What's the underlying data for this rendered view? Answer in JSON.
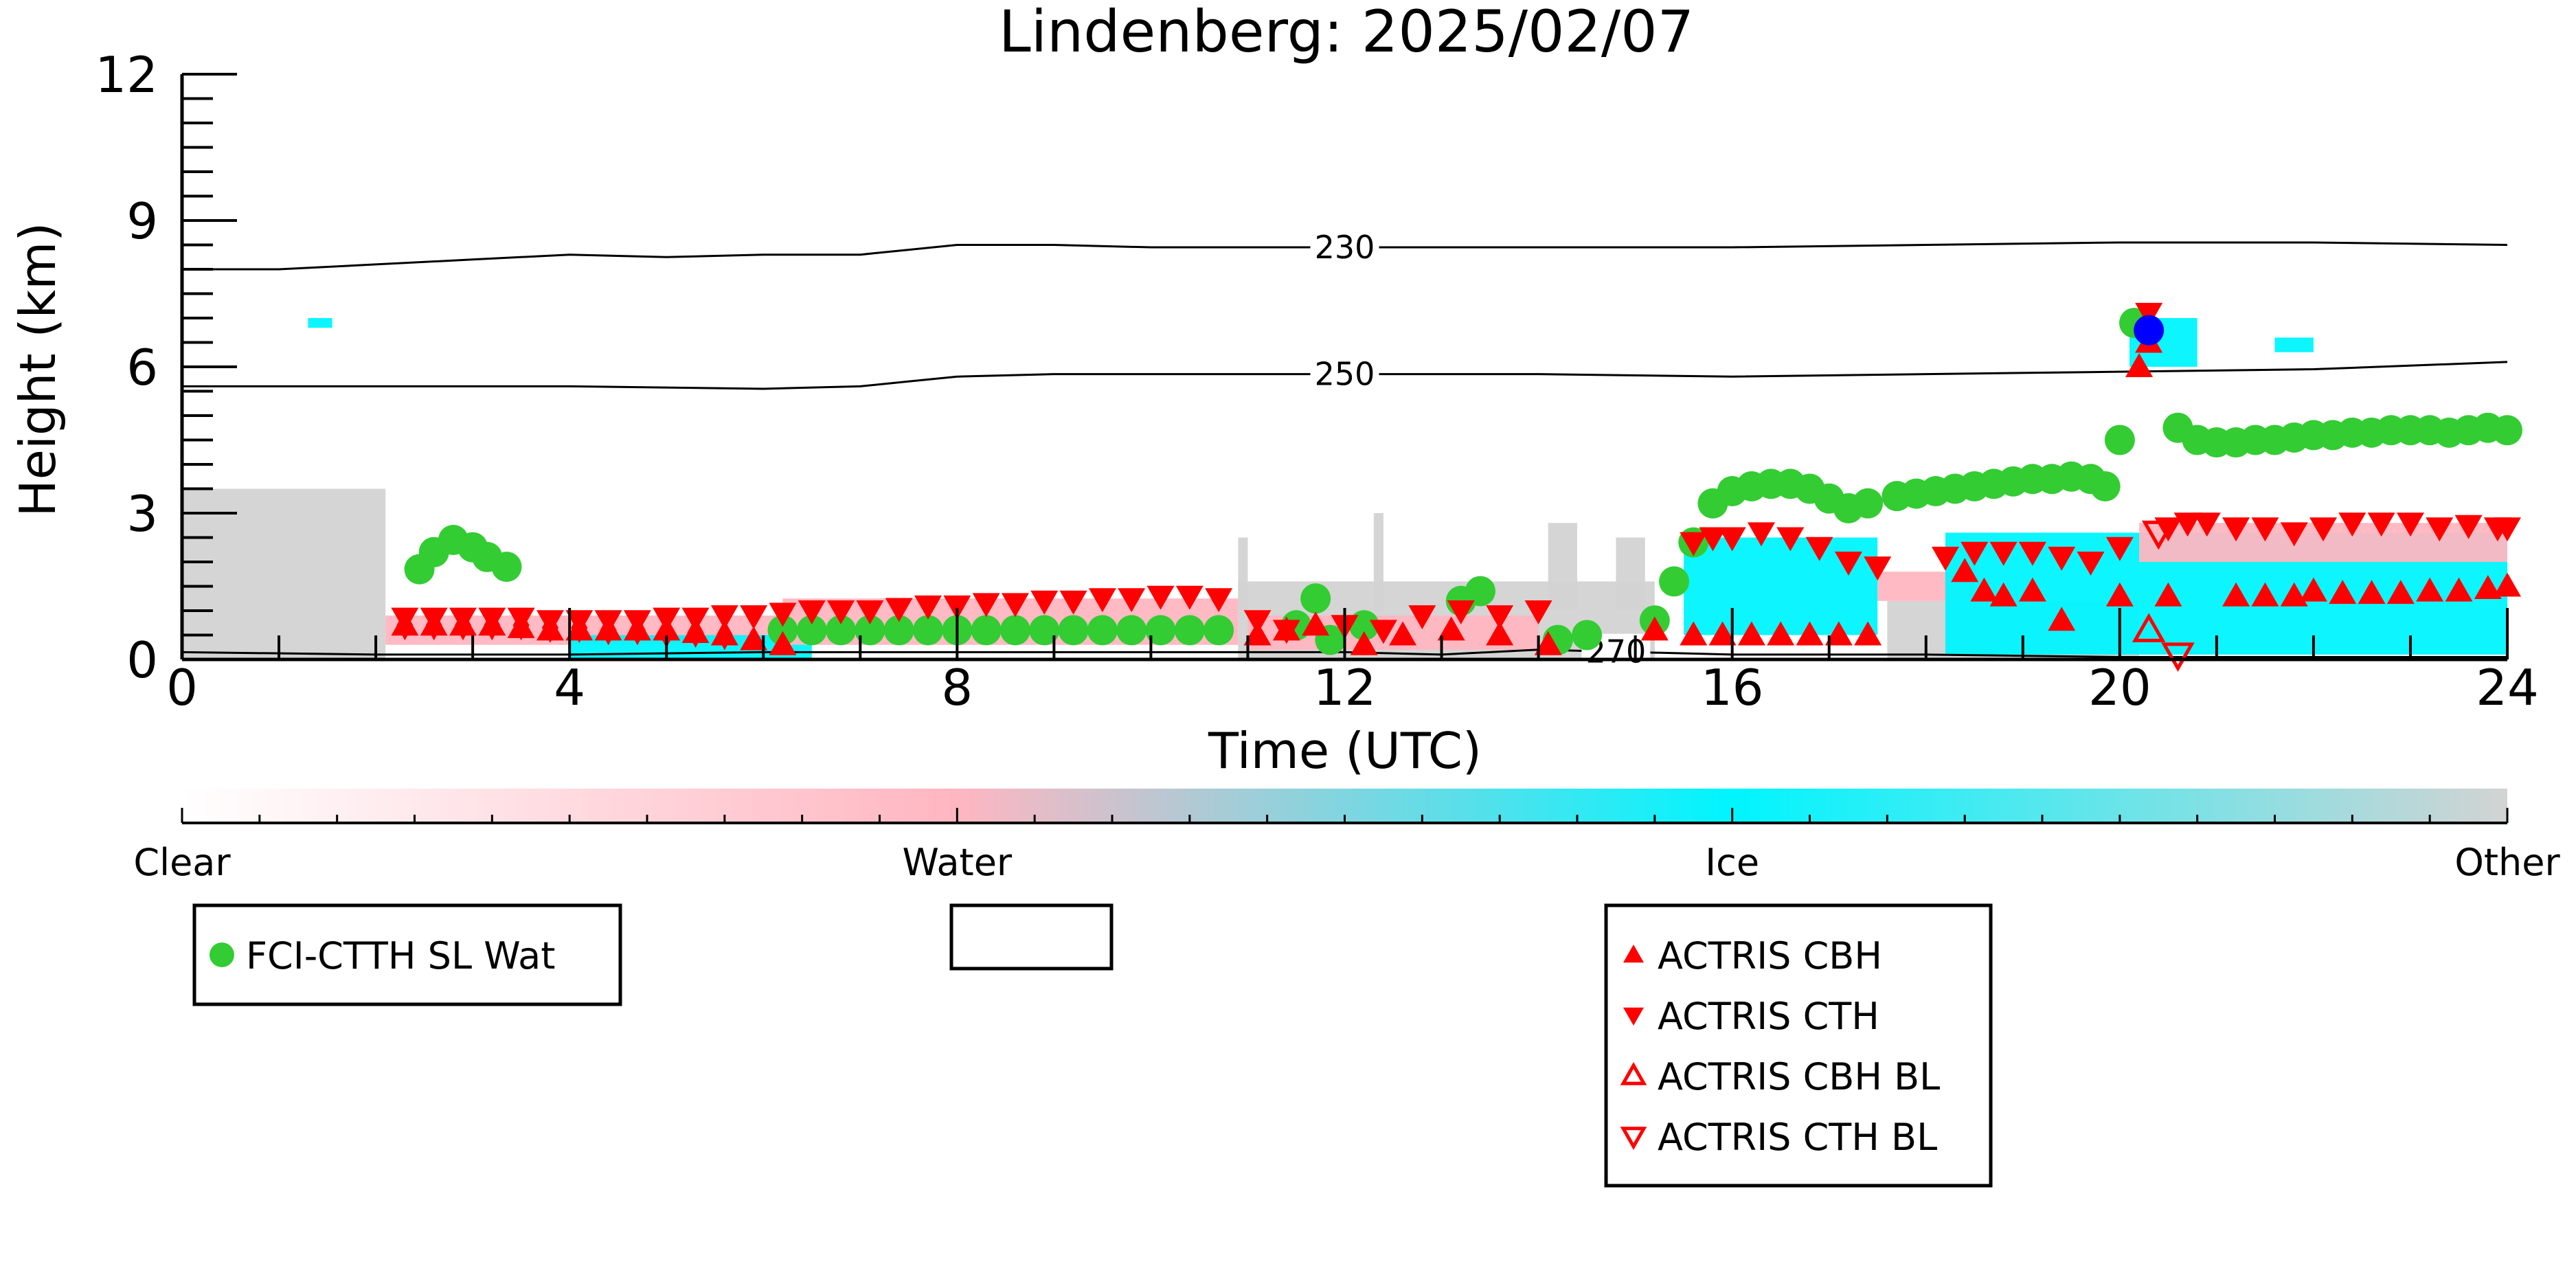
{
  "chart_data": {
    "type": "scatter",
    "title": "Lindenberg: 2025/02/07",
    "xlabel": "Time (UTC)",
    "ylabel": "Height (km)",
    "xlim": [
      0,
      24
    ],
    "ylim": [
      0,
      12
    ],
    "x_ticks": [
      0,
      4,
      8,
      12,
      16,
      20,
      24
    ],
    "x_tick_labels": [
      "0",
      "4",
      "8",
      "12",
      "16",
      "20",
      "24"
    ],
    "y_ticks": [
      0,
      3,
      6,
      9,
      12
    ],
    "y_tick_labels": [
      "0",
      "3",
      "6",
      "9",
      "12"
    ],
    "grid": false,
    "colors": {
      "clear": "#ffffff",
      "water": "#ffb6c1",
      "ice": "#00f5ff",
      "other": "#d3d3d3",
      "fci": "#33cc33",
      "actris": "#ff0000",
      "blue_marker": "#0000ff"
    },
    "contours": [
      {
        "label": "230",
        "label_x": 12.0,
        "x": [
          0,
          1,
          2,
          3,
          4,
          5,
          6,
          7,
          7.5,
          8,
          9,
          10,
          12,
          14,
          16,
          18,
          20,
          22,
          24
        ],
        "y": [
          8.0,
          8.0,
          8.1,
          8.2,
          8.3,
          8.25,
          8.3,
          8.3,
          8.4,
          8.5,
          8.5,
          8.45,
          8.45,
          8.45,
          8.45,
          8.5,
          8.55,
          8.55,
          8.5
        ]
      },
      {
        "label": "250",
        "label_x": 12.0,
        "x": [
          0,
          2,
          4,
          6,
          7,
          7.5,
          8,
          9,
          10,
          12,
          14,
          16,
          18,
          20,
          22,
          24
        ],
        "y": [
          5.6,
          5.6,
          5.6,
          5.55,
          5.6,
          5.7,
          5.8,
          5.85,
          5.85,
          5.85,
          5.85,
          5.8,
          5.85,
          5.9,
          5.95,
          6.1
        ]
      },
      {
        "label": "270",
        "label_x": 14.8,
        "x": [
          0,
          2,
          4,
          6,
          8,
          10,
          12,
          13,
          14,
          15,
          16,
          18,
          20,
          22,
          24
        ],
        "y": [
          0.15,
          0.1,
          0.1,
          0.15,
          0.15,
          0.15,
          0.15,
          0.1,
          0.2,
          0.15,
          0.1,
          0.1,
          0.05,
          0.05,
          0.05
        ]
      }
    ],
    "series": [
      {
        "name": "FCI-CTTH SL Wat",
        "marker": "circle",
        "color": "#33cc33",
        "x": [
          2.45,
          2.6,
          2.8,
          3.0,
          3.15,
          3.35,
          6.2,
          6.5,
          6.8,
          7.1,
          7.4,
          7.7,
          8.0,
          8.3,
          8.6,
          8.9,
          9.2,
          9.5,
          9.8,
          10.1,
          10.4,
          10.7,
          11.5,
          11.7,
          11.85,
          12.2,
          13.2,
          13.4,
          14.2,
          14.5,
          15.2,
          15.4,
          15.6,
          15.8,
          16.0,
          16.2,
          16.4,
          16.6,
          16.8,
          17.0,
          17.2,
          17.4,
          17.7,
          17.9,
          18.1,
          18.3,
          18.5,
          18.7,
          18.9,
          19.1,
          19.3,
          19.5,
          19.7,
          19.85,
          20.0,
          20.15,
          20.6,
          20.8,
          21.0,
          21.2,
          21.4,
          21.6,
          21.8,
          22.0,
          22.2,
          22.4,
          22.6,
          22.8,
          23.0,
          23.2,
          23.4,
          23.6,
          23.8,
          24.0
        ],
        "y": [
          1.85,
          2.2,
          2.45,
          2.3,
          2.1,
          1.9,
          0.6,
          0.6,
          0.6,
          0.6,
          0.6,
          0.6,
          0.6,
          0.6,
          0.6,
          0.6,
          0.6,
          0.6,
          0.6,
          0.6,
          0.6,
          0.6,
          0.7,
          1.25,
          0.4,
          0.7,
          1.2,
          1.4,
          0.4,
          0.5,
          0.8,
          1.6,
          2.4,
          3.2,
          3.45,
          3.55,
          3.6,
          3.6,
          3.5,
          3.3,
          3.1,
          3.2,
          3.35,
          3.4,
          3.45,
          3.5,
          3.55,
          3.6,
          3.65,
          3.7,
          3.7,
          3.75,
          3.7,
          3.55,
          4.5,
          6.9,
          4.75,
          4.5,
          4.45,
          4.45,
          4.5,
          4.5,
          4.55,
          4.6,
          4.6,
          4.65,
          4.65,
          4.7,
          4.7,
          4.7,
          4.65,
          4.7,
          4.75,
          4.7
        ]
      },
      {
        "name": "ACTRIS CBH",
        "marker": "triangle-up",
        "color": "#ff0000",
        "x": [
          2.3,
          2.6,
          2.9,
          3.2,
          3.5,
          3.8,
          4.1,
          4.4,
          4.7,
          5.0,
          5.3,
          5.6,
          5.9,
          6.2,
          11.1,
          11.4,
          11.7,
          12.2,
          12.6,
          13.1,
          13.6,
          14.1,
          15.2,
          15.6,
          15.9,
          16.2,
          16.5,
          16.8,
          17.1,
          17.4,
          18.4,
          18.6,
          18.8,
          19.1,
          19.4,
          20.0,
          20.2,
          20.3,
          20.5,
          21.2,
          21.5,
          21.8,
          22.0,
          22.3,
          22.6,
          22.9,
          23.2,
          23.5,
          23.8,
          24.0
        ],
        "y": [
          0.7,
          0.7,
          0.7,
          0.7,
          0.65,
          0.6,
          0.6,
          0.6,
          0.6,
          0.6,
          0.55,
          0.5,
          0.4,
          0.3,
          0.5,
          0.6,
          0.7,
          0.3,
          0.5,
          0.6,
          0.5,
          0.3,
          0.6,
          0.5,
          0.5,
          0.5,
          0.5,
          0.5,
          0.5,
          0.5,
          1.8,
          1.4,
          1.3,
          1.4,
          0.8,
          1.3,
          6.0,
          6.5,
          1.3,
          1.3,
          1.3,
          1.3,
          1.4,
          1.35,
          1.35,
          1.35,
          1.4,
          1.4,
          1.45,
          1.5
        ]
      },
      {
        "name": "ACTRIS CTH",
        "marker": "triangle-down",
        "color": "#ff0000",
        "x": [
          2.3,
          2.6,
          2.9,
          3.2,
          3.5,
          3.8,
          4.1,
          4.4,
          4.7,
          5.0,
          5.3,
          5.6,
          5.9,
          6.2,
          6.5,
          6.8,
          7.1,
          7.4,
          7.7,
          8.0,
          8.3,
          8.6,
          8.9,
          9.2,
          9.5,
          9.8,
          10.1,
          10.4,
          10.7,
          11.1,
          11.4,
          12.0,
          12.4,
          12.8,
          13.2,
          13.6,
          14.0,
          15.6,
          15.8,
          16.0,
          16.3,
          16.6,
          16.9,
          17.2,
          17.5,
          18.2,
          18.5,
          18.8,
          19.1,
          19.4,
          19.7,
          20.0,
          20.3,
          20.5,
          20.7,
          20.9,
          21.2,
          21.5,
          21.8,
          22.1,
          22.4,
          22.7,
          23.0,
          23.3,
          23.6,
          23.9,
          24.0
        ],
        "y": [
          0.85,
          0.85,
          0.85,
          0.85,
          0.85,
          0.8,
          0.8,
          0.8,
          0.8,
          0.85,
          0.85,
          0.9,
          0.9,
          0.95,
          1.0,
          1.0,
          1.0,
          1.05,
          1.1,
          1.1,
          1.15,
          1.15,
          1.2,
          1.2,
          1.25,
          1.25,
          1.3,
          1.3,
          1.25,
          0.8,
          0.6,
          0.7,
          0.6,
          0.9,
          1.0,
          0.9,
          1.0,
          2.4,
          2.5,
          2.5,
          2.6,
          2.5,
          2.3,
          2.0,
          1.9,
          2.1,
          2.2,
          2.2,
          2.2,
          2.1,
          2.0,
          2.3,
          7.1,
          2.7,
          2.8,
          2.8,
          2.7,
          2.7,
          2.6,
          2.7,
          2.8,
          2.8,
          2.8,
          2.7,
          2.75,
          2.7,
          2.7
        ]
      },
      {
        "name": "ACTRIS CBH BL",
        "marker": "triangle-up-open",
        "color": "#ff0000",
        "x": [
          20.3
        ],
        "y": [
          0.6
        ]
      },
      {
        "name": "ACTRIS CTH BL",
        "marker": "triangle-down-open",
        "color": "#ff0000",
        "x": [
          20.4,
          20.6
        ],
        "y": [
          2.6,
          0.1
        ]
      },
      {
        "marker": "circle",
        "color": "#0000ff",
        "x": [
          20.3
        ],
        "y": [
          6.75
        ]
      },
      {
        "marker": "diamond",
        "color": "#ff0000",
        "x": [
          2.3,
          2.6,
          2.9,
          3.2,
          3.5,
          3.8,
          4.1,
          4.4,
          4.7,
          5.0,
          5.3,
          5.6
        ],
        "y": [
          0.7,
          0.7,
          0.7,
          0.7,
          0.7,
          0.65,
          0.65,
          0.6,
          0.6,
          0.55,
          0.55,
          0.5
        ]
      }
    ],
    "background_regions": [
      {
        "cls": "other",
        "x0": 0.0,
        "x1": 2.1,
        "y0": 0.0,
        "y1": 3.5
      },
      {
        "cls": "water",
        "x0": 2.1,
        "x1": 6.2,
        "y0": 0.3,
        "y1": 0.9
      },
      {
        "cls": "ice",
        "x0": 4.0,
        "x1": 6.5,
        "y0": 0.0,
        "y1": 0.5
      },
      {
        "cls": "water",
        "x0": 6.2,
        "x1": 10.9,
        "y0": 0.3,
        "y1": 1.25
      },
      {
        "cls": "other",
        "x0": 10.9,
        "x1": 15.2,
        "y0": 0.0,
        "y1": 1.6
      },
      {
        "cls": "water",
        "x0": 11.0,
        "x1": 14.0,
        "y0": 0.2,
        "y1": 0.9
      },
      {
        "cls": "ice",
        "x0": 15.5,
        "x1": 17.5,
        "y0": 0.5,
        "y1": 2.5
      },
      {
        "cls": "water",
        "x0": 17.5,
        "x1": 18.5,
        "y0": 1.2,
        "y1": 1.8
      },
      {
        "cls": "other",
        "x0": 17.6,
        "x1": 20.2,
        "y0": 0.0,
        "y1": 1.2
      },
      {
        "cls": "ice",
        "x0": 18.2,
        "x1": 24.0,
        "y0": 0.1,
        "y1": 2.6
      },
      {
        "cls": "water",
        "x0": 20.2,
        "x1": 24.0,
        "y0": 2.0,
        "y1": 2.8
      },
      {
        "cls": "ice",
        "x0": 20.1,
        "x1": 20.8,
        "y0": 6.0,
        "y1": 7.0
      },
      {
        "cls": "ice",
        "x0": 21.6,
        "x1": 22.0,
        "y0": 6.3,
        "y1": 6.6
      },
      {
        "cls": "ice",
        "x0": 1.3,
        "x1": 1.55,
        "y0": 6.8,
        "y1": 7.0
      },
      {
        "cls": "other",
        "x0": 10.9,
        "x1": 11.0,
        "y0": 1.0,
        "y1": 2.5
      },
      {
        "cls": "other",
        "x0": 12.3,
        "x1": 12.4,
        "y0": 1.0,
        "y1": 3.0
      },
      {
        "cls": "other",
        "x0": 14.1,
        "x1": 14.4,
        "y0": 1.0,
        "y1": 2.8
      },
      {
        "cls": "other",
        "x0": 14.8,
        "x1": 15.1,
        "y0": 1.0,
        "y1": 2.5
      }
    ],
    "colorbar": {
      "labels": [
        "Clear",
        "Water",
        "Ice",
        "Other"
      ],
      "label_positions": [
        0,
        1,
        2,
        3
      ],
      "stops": [
        "#ffffff",
        "#ffb6c1",
        "#00f5ff",
        "#d3d3d3"
      ]
    },
    "legends": [
      {
        "entries": [
          {
            "label": "FCI-CTTH SL Wat",
            "marker": "circle",
            "color": "#33cc33"
          }
        ]
      },
      {
        "entries": []
      },
      {
        "entries": [
          {
            "label": "ACTRIS CBH",
            "marker": "triangle-up",
            "color": "#ff0000"
          },
          {
            "label": "ACTRIS CTH",
            "marker": "triangle-down",
            "color": "#ff0000"
          },
          {
            "label": "ACTRIS CBH BL",
            "marker": "triangle-up-open",
            "color": "#ff0000"
          },
          {
            "label": "ACTRIS CTH BL",
            "marker": "triangle-down-open",
            "color": "#ff0000"
          }
        ]
      }
    ]
  }
}
